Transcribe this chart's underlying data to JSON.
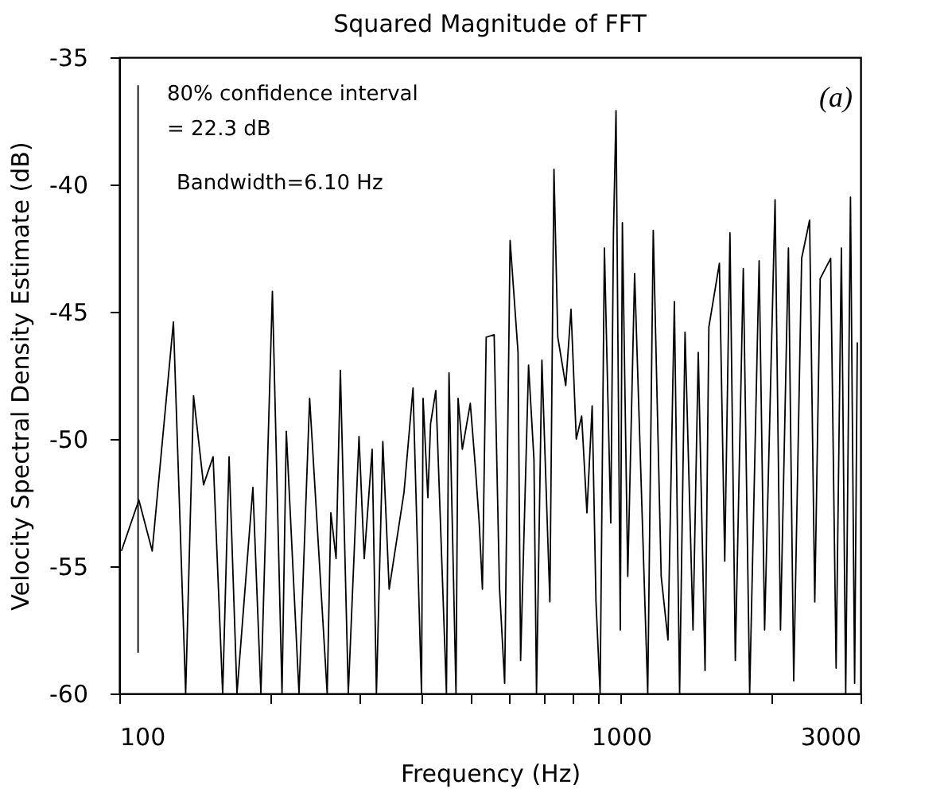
{
  "chart_data": {
    "type": "line",
    "title": "Squared Magnitude of FFT",
    "xlabel": "Frequency (Hz)",
    "ylabel": "Velocity Spectral Density Estimate (dB)",
    "annotations": [
      "80% confidence interval",
      "= 22.3 dB",
      "Bandwidth=6.10 Hz",
      "(a)"
    ],
    "log": "x",
    "grid": false,
    "marker": "none",
    "line_style": "solid",
    "xlim": [
      100,
      3000
    ],
    "xticks": [
      100,
      {
        "value": 200,
        "label": null
      },
      {
        "value": 300,
        "label": null
      },
      {
        "value": 400,
        "label": null
      },
      {
        "value": 500,
        "label": null
      },
      {
        "value": 600,
        "label": null
      },
      {
        "value": 700,
        "label": null
      },
      {
        "value": 800,
        "label": null
      },
      {
        "value": 900,
        "label": null
      },
      1000,
      {
        "value": 2000,
        "label": null
      },
      3000
    ],
    "ylim": [
      -60,
      -35
    ],
    "yticks": [
      -60,
      -55,
      -50,
      -45,
      -40,
      -35
    ],
    "series": [
      {
        "color": "#000000",
        "x": [
          101,
          109.4,
          116.3,
          128.2,
          135.6,
          140.6,
          147.2,
          153.8,
          160.7,
          165.5,
          171.6,
          184.6,
          191.5,
          201.9,
          211.0,
          215.2,
          228.1,
          239.5,
          259.6,
          264.0,
          270.4,
          275.8,
          286.0,
          300.4,
          307.7,
          319.1,
          325.4,
          335.1,
          345.0,
          369.3,
          384.9,
          400.2,
          403.1,
          412.0,
          417.2,
          427.3,
          448.7,
          454.0,
          468.8,
          473.3,
          482.7,
          500.6,
          512.8,
          521.5,
          529.2,
          538.5,
          558.5,
          572.2,
          586.1,
          600.9,
          623.2,
          630.6,
          654.0,
          670.4,
          678.3,
          695.3,
          721.2,
          734.9,
          747.9,
          775.7,
          794.7,
          814.1,
          834.5,
          854.9,
          875.7,
          891.2,
          908.2,
          926.3,
          953.7,
          965.6,
          977.0,
          996.4,
          1005.9,
          1031.1,
          1064,
          1130,
          1159,
          1202,
          1240,
          1277,
          1308,
          1341,
          1391,
          1425,
          1470,
          1496,
          1570,
          1609,
          1648,
          1689,
          1752,
          1804,
          1884,
          1932,
          2027,
          2078,
          2155,
          2208,
          2290,
          2375,
          2432,
          2493,
          2616,
          2682,
          2748,
          2803,
          2865,
          2920,
          2956
        ],
        "values": [
          -54.4,
          -52.4,
          -54.4,
          -45.4,
          -60,
          -48.3,
          -51.8,
          -50.7,
          -60,
          -50.7,
          -60,
          -51.9,
          -60,
          -44.2,
          -60,
          -49.7,
          -60,
          -48.4,
          -60,
          -52.9,
          -54.7,
          -47.3,
          -60,
          -49.9,
          -54.7,
          -50.4,
          -60,
          -50.1,
          -55.9,
          -52.1,
          -48.0,
          -60,
          -48.4,
          -52.3,
          -49.4,
          -48.1,
          -60,
          -47.4,
          -60,
          -48.4,
          -50.4,
          -48.6,
          -51.2,
          -53.3,
          -55.9,
          -46.0,
          -45.9,
          -55.8,
          -59.6,
          -42.2,
          -46.6,
          -58.7,
          -47.1,
          -50.8,
          -60,
          -46.9,
          -56.4,
          -39.4,
          -46.0,
          -47.9,
          -44.9,
          -50.0,
          -49.1,
          -52.9,
          -48.7,
          -56.4,
          -60,
          -42.5,
          -53.3,
          -41.9,
          -37.1,
          -57.5,
          -41.5,
          -55.4,
          -43.5,
          -60,
          -41.8,
          -55.4,
          -57.9,
          -44.6,
          -60,
          -45.8,
          -57.5,
          -46.6,
          -59.1,
          -45.6,
          -43.1,
          -54.8,
          -41.9,
          -58.7,
          -43.3,
          -60,
          -43.0,
          -57.5,
          -40.6,
          -57.5,
          -42.5,
          -59.5,
          -42.9,
          -41.4,
          -56.4,
          -43.7,
          -42.9,
          -59.0,
          -42.5,
          -60,
          -40.5,
          -59.6,
          -46.2
        ]
      },
      {
        "type": "line",
        "color": "#000000",
        "x": [
          109,
          109
        ],
        "values": [
          -36.1,
          -58.4
        ]
      }
    ]
  }
}
